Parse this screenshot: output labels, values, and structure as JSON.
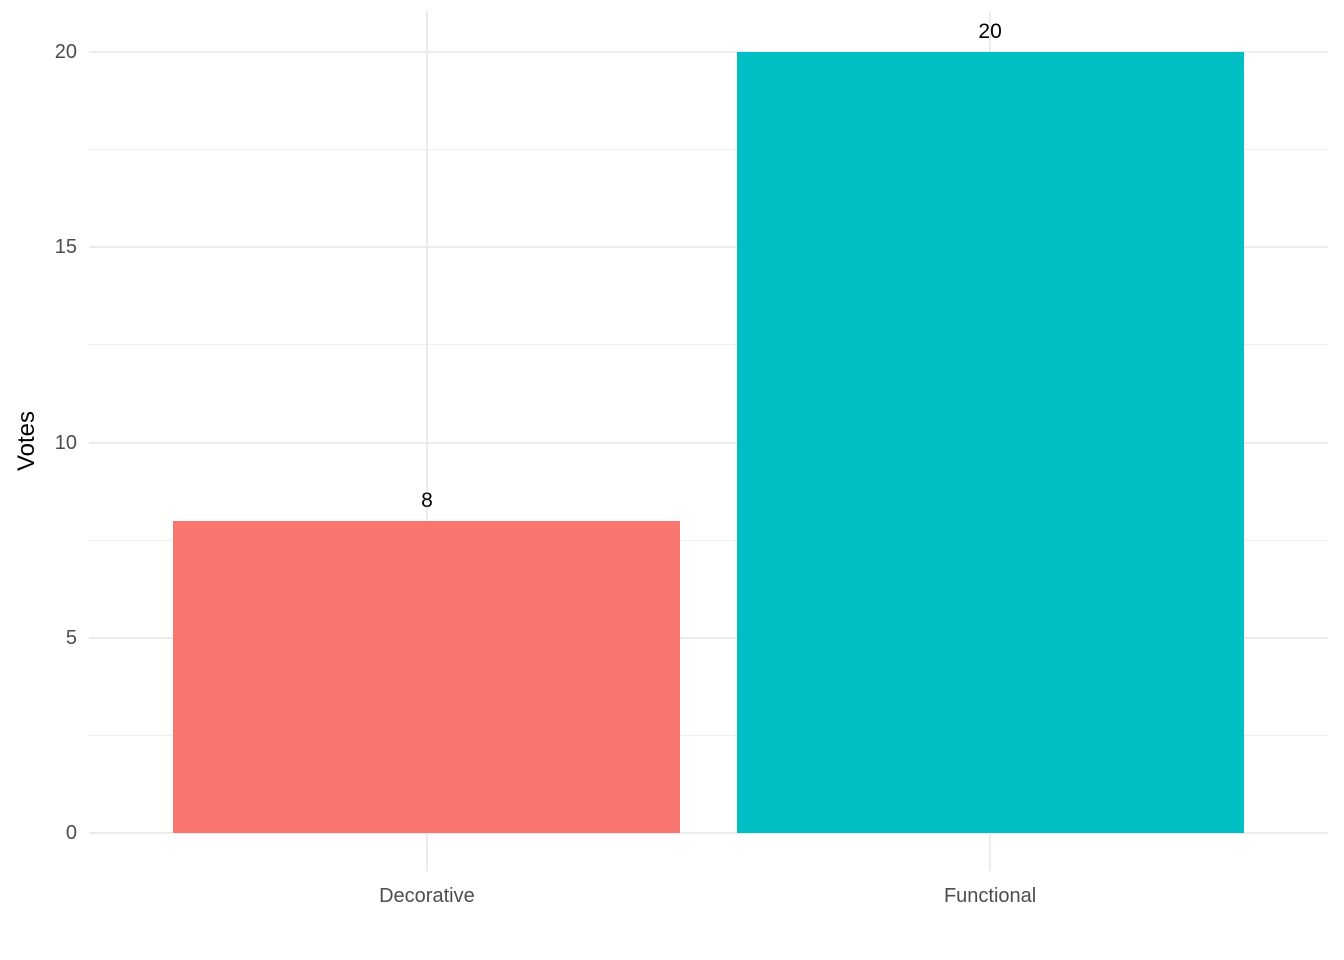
{
  "chart_data": {
    "type": "bar",
    "categories": [
      "Decorative",
      "Functional"
    ],
    "values": [
      8,
      20
    ],
    "value_labels": [
      "8",
      "20"
    ],
    "bar_colors": [
      "#F8766D",
      "#00BFC4"
    ],
    "title": "",
    "xlabel": "",
    "ylabel": "Votes",
    "ylim": [
      0,
      20
    ],
    "y_major_ticks": [
      0,
      5,
      10,
      15,
      20
    ],
    "y_major_tick_labels": [
      "0",
      "5",
      "10",
      "15",
      "20"
    ],
    "y_minor_ticks": [
      2.5,
      7.5,
      12.5,
      17.5
    ],
    "grid": "on",
    "legend_position": "none",
    "colors": {
      "background": "#FFFFFF",
      "grid_major": "#EBEBEB",
      "grid_minor": "#F0F0F0",
      "axis_text": "#4D4D4D",
      "axis_title": "#000000",
      "value_label": "#000000"
    }
  }
}
